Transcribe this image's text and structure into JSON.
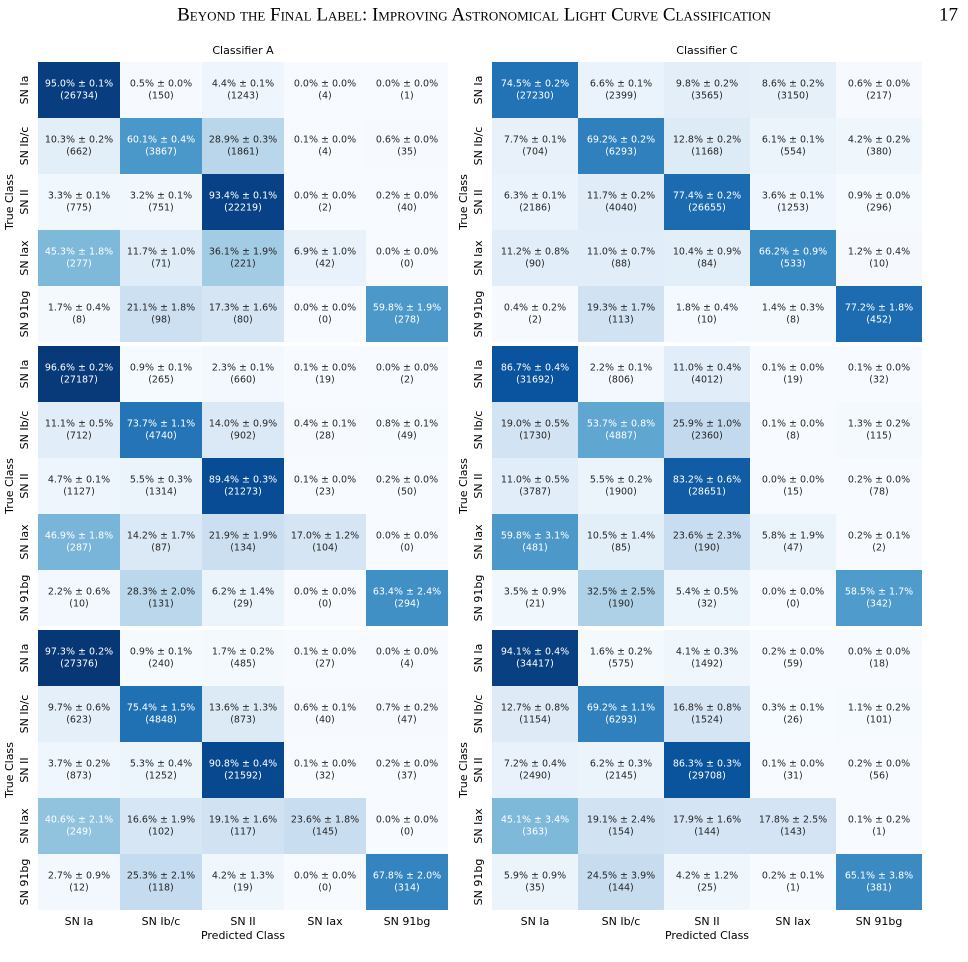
{
  "header": {
    "title": "Beyond the Final Label: Improving Astronomical Light Curve Classification",
    "page": "17"
  },
  "classes": [
    "SN Ia",
    "SN Ib/c",
    "SN II",
    "SN Iax",
    "SN 91bg"
  ],
  "xlabel": "Predicted Class",
  "ylabel": "True Class",
  "vlim": [
    0,
    100
  ],
  "colormap": [
    "#f7fbff",
    "#deebf7",
    "#c6dbef",
    "#9ecae1",
    "#6baed6",
    "#4292c6",
    "#2171b5",
    "#08519c",
    "#08306b"
  ],
  "chart_data": [
    {
      "type": "heatmap",
      "title": "Classifier A",
      "values": [
        [
          95.0,
          0.5,
          4.4,
          0.0,
          0.0
        ],
        [
          10.3,
          60.1,
          28.9,
          0.1,
          0.6
        ],
        [
          3.3,
          3.2,
          93.4,
          0.0,
          0.2
        ],
        [
          45.3,
          11.7,
          36.1,
          6.9,
          0.0
        ],
        [
          1.7,
          21.1,
          17.3,
          0.0,
          59.8
        ]
      ],
      "value_labels": [
        [
          "95.0% ± 0.1%",
          "0.5% ± 0.0%",
          "4.4% ± 0.1%",
          "0.0% ± 0.0%",
          "0.0% ± 0.0%"
        ],
        [
          "10.3% ± 0.2%",
          "60.1% ± 0.4%",
          "28.9% ± 0.3%",
          "0.1% ± 0.0%",
          "0.6% ± 0.0%"
        ],
        [
          "3.3% ± 0.1%",
          "3.2% ± 0.1%",
          "93.4% ± 0.1%",
          "0.0% ± 0.0%",
          "0.2% ± 0.0%"
        ],
        [
          "45.3% ± 1.8%",
          "11.7% ± 1.0%",
          "36.1% ± 1.9%",
          "6.9% ± 1.0%",
          "0.0% ± 0.0%"
        ],
        [
          "1.7% ± 0.4%",
          "21.1% ± 1.8%",
          "17.3% ± 1.6%",
          "0.0% ± 0.0%",
          "59.8% ± 1.9%"
        ]
      ],
      "count_labels": [
        [
          "(26734)",
          "(150)",
          "(1243)",
          "(4)",
          "(1)"
        ],
        [
          "(662)",
          "(3867)",
          "(1861)",
          "(4)",
          "(35)"
        ],
        [
          "(775)",
          "(751)",
          "(22219)",
          "(2)",
          "(40)"
        ],
        [
          "(277)",
          "(71)",
          "(221)",
          "(42)",
          "(0)"
        ],
        [
          "(8)",
          "(98)",
          "(80)",
          "(0)",
          "(278)"
        ]
      ]
    },
    {
      "type": "heatmap",
      "title": "Classifier C",
      "values": [
        [
          74.5,
          6.6,
          9.8,
          8.6,
          0.6
        ],
        [
          7.7,
          69.2,
          12.8,
          6.1,
          4.2
        ],
        [
          6.3,
          11.7,
          77.4,
          3.6,
          0.9
        ],
        [
          11.2,
          11.0,
          10.4,
          66.2,
          1.2
        ],
        [
          0.4,
          19.3,
          1.8,
          1.4,
          77.2
        ]
      ],
      "value_labels": [
        [
          "74.5% ± 0.2%",
          "6.6% ± 0.1%",
          "9.8% ± 0.2%",
          "8.6% ± 0.2%",
          "0.6% ± 0.0%"
        ],
        [
          "7.7% ± 0.1%",
          "69.2% ± 0.2%",
          "12.8% ± 0.2%",
          "6.1% ± 0.1%",
          "4.2% ± 0.2%"
        ],
        [
          "6.3% ± 0.1%",
          "11.7% ± 0.2%",
          "77.4% ± 0.2%",
          "3.6% ± 0.1%",
          "0.9% ± 0.0%"
        ],
        [
          "11.2% ± 0.8%",
          "11.0% ± 0.7%",
          "10.4% ± 0.9%",
          "66.2% ± 0.9%",
          "1.2% ± 0.4%"
        ],
        [
          "0.4% ± 0.2%",
          "19.3% ± 1.7%",
          "1.8% ± 0.4%",
          "1.4% ± 0.3%",
          "77.2% ± 1.8%"
        ]
      ],
      "count_labels": [
        [
          "(27230)",
          "(2399)",
          "(3565)",
          "(3150)",
          "(217)"
        ],
        [
          "(704)",
          "(6293)",
          "(1168)",
          "(554)",
          "(380)"
        ],
        [
          "(2186)",
          "(4040)",
          "(26655)",
          "(1253)",
          "(296)"
        ],
        [
          "(90)",
          "(88)",
          "(84)",
          "(533)",
          "(10)"
        ],
        [
          "(2)",
          "(113)",
          "(10)",
          "(8)",
          "(452)"
        ]
      ]
    },
    {
      "type": "heatmap",
      "values": [
        [
          96.6,
          0.9,
          2.3,
          0.1,
          0.0
        ],
        [
          11.1,
          73.7,
          14.0,
          0.4,
          0.8
        ],
        [
          4.7,
          5.5,
          89.4,
          0.1,
          0.2
        ],
        [
          46.9,
          14.2,
          21.9,
          17.0,
          0.0
        ],
        [
          2.2,
          28.3,
          6.2,
          0.0,
          63.4
        ]
      ],
      "value_labels": [
        [
          "96.6% ± 0.2%",
          "0.9% ± 0.1%",
          "2.3% ± 0.1%",
          "0.1% ± 0.0%",
          "0.0% ± 0.0%"
        ],
        [
          "11.1% ± 0.5%",
          "73.7% ± 1.1%",
          "14.0% ± 0.9%",
          "0.4% ± 0.1%",
          "0.8% ± 0.1%"
        ],
        [
          "4.7% ± 0.1%",
          "5.5% ± 0.3%",
          "89.4% ± 0.3%",
          "0.1% ± 0.0%",
          "0.2% ± 0.0%"
        ],
        [
          "46.9% ± 1.8%",
          "14.2% ± 1.7%",
          "21.9% ± 1.9%",
          "17.0% ± 1.2%",
          "0.0% ± 0.0%"
        ],
        [
          "2.2% ± 0.6%",
          "28.3% ± 2.0%",
          "6.2% ± 1.4%",
          "0.0% ± 0.0%",
          "63.4% ± 2.4%"
        ]
      ],
      "count_labels": [
        [
          "(27187)",
          "(265)",
          "(660)",
          "(19)",
          "(2)"
        ],
        [
          "(712)",
          "(4740)",
          "(902)",
          "(28)",
          "(49)"
        ],
        [
          "(1127)",
          "(1314)",
          "(21273)",
          "(23)",
          "(50)"
        ],
        [
          "(287)",
          "(87)",
          "(134)",
          "(104)",
          "(0)"
        ],
        [
          "(10)",
          "(131)",
          "(29)",
          "(0)",
          "(294)"
        ]
      ]
    },
    {
      "type": "heatmap",
      "values": [
        [
          86.7,
          2.2,
          11.0,
          0.1,
          0.1
        ],
        [
          19.0,
          53.7,
          25.9,
          0.1,
          1.3
        ],
        [
          11.0,
          5.5,
          83.2,
          0.0,
          0.2
        ],
        [
          59.8,
          10.5,
          23.6,
          5.8,
          0.2
        ],
        [
          3.5,
          32.5,
          5.4,
          0.0,
          58.5
        ]
      ],
      "value_labels": [
        [
          "86.7% ± 0.4%",
          "2.2% ± 0.1%",
          "11.0% ± 0.4%",
          "0.1% ± 0.0%",
          "0.1% ± 0.0%"
        ],
        [
          "19.0% ± 0.5%",
          "53.7% ± 0.8%",
          "25.9% ± 1.0%",
          "0.1% ± 0.0%",
          "1.3% ± 0.2%"
        ],
        [
          "11.0% ± 0.5%",
          "5.5% ± 0.2%",
          "83.2% ± 0.6%",
          "0.0% ± 0.0%",
          "0.2% ± 0.0%"
        ],
        [
          "59.8% ± 3.1%",
          "10.5% ± 1.4%",
          "23.6% ± 2.3%",
          "5.8% ± 1.9%",
          "0.2% ± 0.1%"
        ],
        [
          "3.5% ± 0.9%",
          "32.5% ± 2.5%",
          "5.4% ± 0.5%",
          "0.0% ± 0.0%",
          "58.5% ± 1.7%"
        ]
      ],
      "count_labels": [
        [
          "(31692)",
          "(806)",
          "(4012)",
          "(19)",
          "(32)"
        ],
        [
          "(1730)",
          "(4887)",
          "(2360)",
          "(8)",
          "(115)"
        ],
        [
          "(3787)",
          "(1900)",
          "(28651)",
          "(15)",
          "(78)"
        ],
        [
          "(481)",
          "(85)",
          "(190)",
          "(47)",
          "(2)"
        ],
        [
          "(21)",
          "(190)",
          "(32)",
          "(0)",
          "(342)"
        ]
      ]
    },
    {
      "type": "heatmap",
      "values": [
        [
          97.3,
          0.9,
          1.7,
          0.1,
          0.0
        ],
        [
          9.7,
          75.4,
          13.6,
          0.6,
          0.7
        ],
        [
          3.7,
          5.3,
          90.8,
          0.1,
          0.2
        ],
        [
          40.6,
          16.6,
          19.1,
          23.6,
          0.0
        ],
        [
          2.7,
          25.3,
          4.2,
          0.0,
          67.8
        ]
      ],
      "value_labels": [
        [
          "97.3% ± 0.2%",
          "0.9% ± 0.1%",
          "1.7% ± 0.2%",
          "0.1% ± 0.0%",
          "0.0% ± 0.0%"
        ],
        [
          "9.7% ± 0.6%",
          "75.4% ± 1.5%",
          "13.6% ± 1.3%",
          "0.6% ± 0.1%",
          "0.7% ± 0.2%"
        ],
        [
          "3.7% ± 0.2%",
          "5.3% ± 0.4%",
          "90.8% ± 0.4%",
          "0.1% ± 0.0%",
          "0.2% ± 0.0%"
        ],
        [
          "40.6% ± 2.1%",
          "16.6% ± 1.9%",
          "19.1% ± 1.6%",
          "23.6% ± 1.8%",
          "0.0% ± 0.0%"
        ],
        [
          "2.7% ± 0.9%",
          "25.3% ± 2.1%",
          "4.2% ± 1.3%",
          "0.0% ± 0.0%",
          "67.8% ± 2.0%"
        ]
      ],
      "count_labels": [
        [
          "(27376)",
          "(240)",
          "(485)",
          "(27)",
          "(4)"
        ],
        [
          "(623)",
          "(4848)",
          "(873)",
          "(40)",
          "(47)"
        ],
        [
          "(873)",
          "(1252)",
          "(21592)",
          "(32)",
          "(37)"
        ],
        [
          "(249)",
          "(102)",
          "(117)",
          "(145)",
          "(0)"
        ],
        [
          "(12)",
          "(118)",
          "(19)",
          "(0)",
          "(314)"
        ]
      ]
    },
    {
      "type": "heatmap",
      "values": [
        [
          94.1,
          1.6,
          4.1,
          0.2,
          0.0
        ],
        [
          12.7,
          69.2,
          16.8,
          0.3,
          1.1
        ],
        [
          7.2,
          6.2,
          86.3,
          0.1,
          0.2
        ],
        [
          45.1,
          19.1,
          17.9,
          17.8,
          0.1
        ],
        [
          5.9,
          24.5,
          4.2,
          0.2,
          65.1
        ]
      ],
      "value_labels": [
        [
          "94.1% ± 0.4%",
          "1.6% ± 0.2%",
          "4.1% ± 0.3%",
          "0.2% ± 0.0%",
          "0.0% ± 0.0%"
        ],
        [
          "12.7% ± 0.8%",
          "69.2% ± 1.1%",
          "16.8% ± 0.8%",
          "0.3% ± 0.1%",
          "1.1% ± 0.2%"
        ],
        [
          "7.2% ± 0.4%",
          "6.2% ± 0.3%",
          "86.3% ± 0.3%",
          "0.1% ± 0.0%",
          "0.2% ± 0.0%"
        ],
        [
          "45.1% ± 3.4%",
          "19.1% ± 2.4%",
          "17.9% ± 1.6%",
          "17.8% ± 2.5%",
          "0.1% ± 0.2%"
        ],
        [
          "5.9% ± 0.9%",
          "24.5% ± 3.9%",
          "4.2% ± 1.2%",
          "0.2% ± 0.1%",
          "65.1% ± 3.8%"
        ]
      ],
      "count_labels": [
        [
          "(34417)",
          "(575)",
          "(1492)",
          "(59)",
          "(18)"
        ],
        [
          "(1154)",
          "(6293)",
          "(1524)",
          "(26)",
          "(101)"
        ],
        [
          "(2490)",
          "(2145)",
          "(29708)",
          "(31)",
          "(56)"
        ],
        [
          "(363)",
          "(154)",
          "(144)",
          "(143)",
          "(1)"
        ],
        [
          "(35)",
          "(144)",
          "(25)",
          "(1)",
          "(381)"
        ]
      ]
    }
  ]
}
